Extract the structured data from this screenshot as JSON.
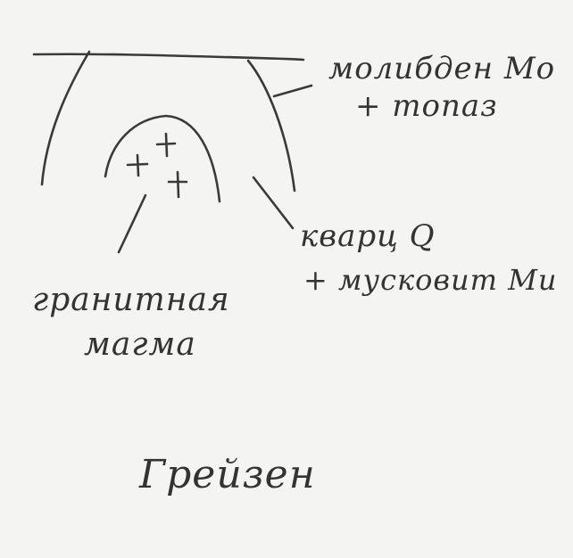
{
  "labels": {
    "molybdenite": "молибден Mo",
    "topaz": "+ топаз",
    "quartz": "кварц Q",
    "muscovite": "+ мусковит Mu",
    "magma_line1": "гранитная",
    "magma_line2": "магма",
    "title": "Грейзен"
  },
  "colors": {
    "ink": "#3a3a3a",
    "paper": "#f4f4f2"
  }
}
